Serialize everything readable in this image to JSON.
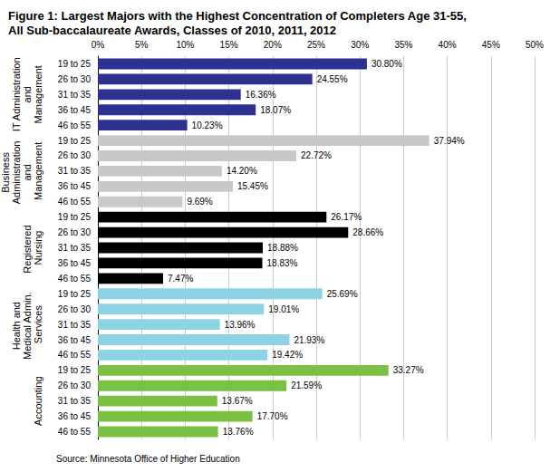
{
  "chart_data": {
    "type": "bar",
    "orientation": "horizontal",
    "title": "Figure 1: Largest Majors with the Highest Concentration of Completers Age 31-55, All Sub-baccalaureate Awards, Classes of 2010, 2011, 2012",
    "source": "Source: Minnesota Office of Higher Education",
    "categories": [
      "19 to 25",
      "26 to 30",
      "31 to 35",
      "36 to 45",
      "46 to 55"
    ],
    "series": [
      {
        "name": "IT Administration and Management",
        "color": "#2e3192",
        "values": [
          30.8,
          24.55,
          16.36,
          18.07,
          10.23
        ],
        "value_labels": [
          "30.80%",
          "24.55%",
          "16.36%",
          "18.07%",
          "10.23%"
        ]
      },
      {
        "name": "Business Administration and Management",
        "color": "#c8c8c8",
        "values": [
          37.94,
          22.72,
          14.2,
          15.45,
          9.69
        ],
        "value_labels": [
          "37.94%",
          "22.72%",
          "14.20%",
          "15.45%",
          "9.69%"
        ]
      },
      {
        "name": "Registered Nursing",
        "color": "#000000",
        "values": [
          26.17,
          28.66,
          18.88,
          18.83,
          7.47
        ],
        "value_labels": [
          "26.17%",
          "28.66%",
          "18.88%",
          "18.83%",
          "7.47%"
        ]
      },
      {
        "name": "Health and Medical Admin. Services",
        "color": "#8dd3e3",
        "values": [
          25.69,
          19.01,
          13.96,
          21.93,
          19.42
        ],
        "value_labels": [
          "25.69%",
          "19.01%",
          "13.96%",
          "21.93%",
          "19.42%"
        ]
      },
      {
        "name": "Accounting",
        "color": "#7ac143",
        "values": [
          33.27,
          21.59,
          13.67,
          17.7,
          13.76
        ],
        "value_labels": [
          "33.27%",
          "21.59%",
          "13.67%",
          "17.70%",
          "13.76%"
        ]
      }
    ],
    "xlim": [
      0,
      50
    ],
    "xticks": [
      {
        "value": 0,
        "label": "0%"
      },
      {
        "value": 5,
        "label": "5%"
      },
      {
        "value": 10,
        "label": "10%"
      },
      {
        "value": 15,
        "label": "15%"
      },
      {
        "value": 20,
        "label": "20%"
      },
      {
        "value": 25,
        "label": "25%"
      },
      {
        "value": 30,
        "label": "30%"
      },
      {
        "value": 35,
        "label": "35%"
      },
      {
        "value": 40,
        "label": "40%"
      },
      {
        "value": 45,
        "label": "45%"
      },
      {
        "value": 50,
        "label": "50%"
      }
    ],
    "grid": true,
    "data_labels": true
  }
}
